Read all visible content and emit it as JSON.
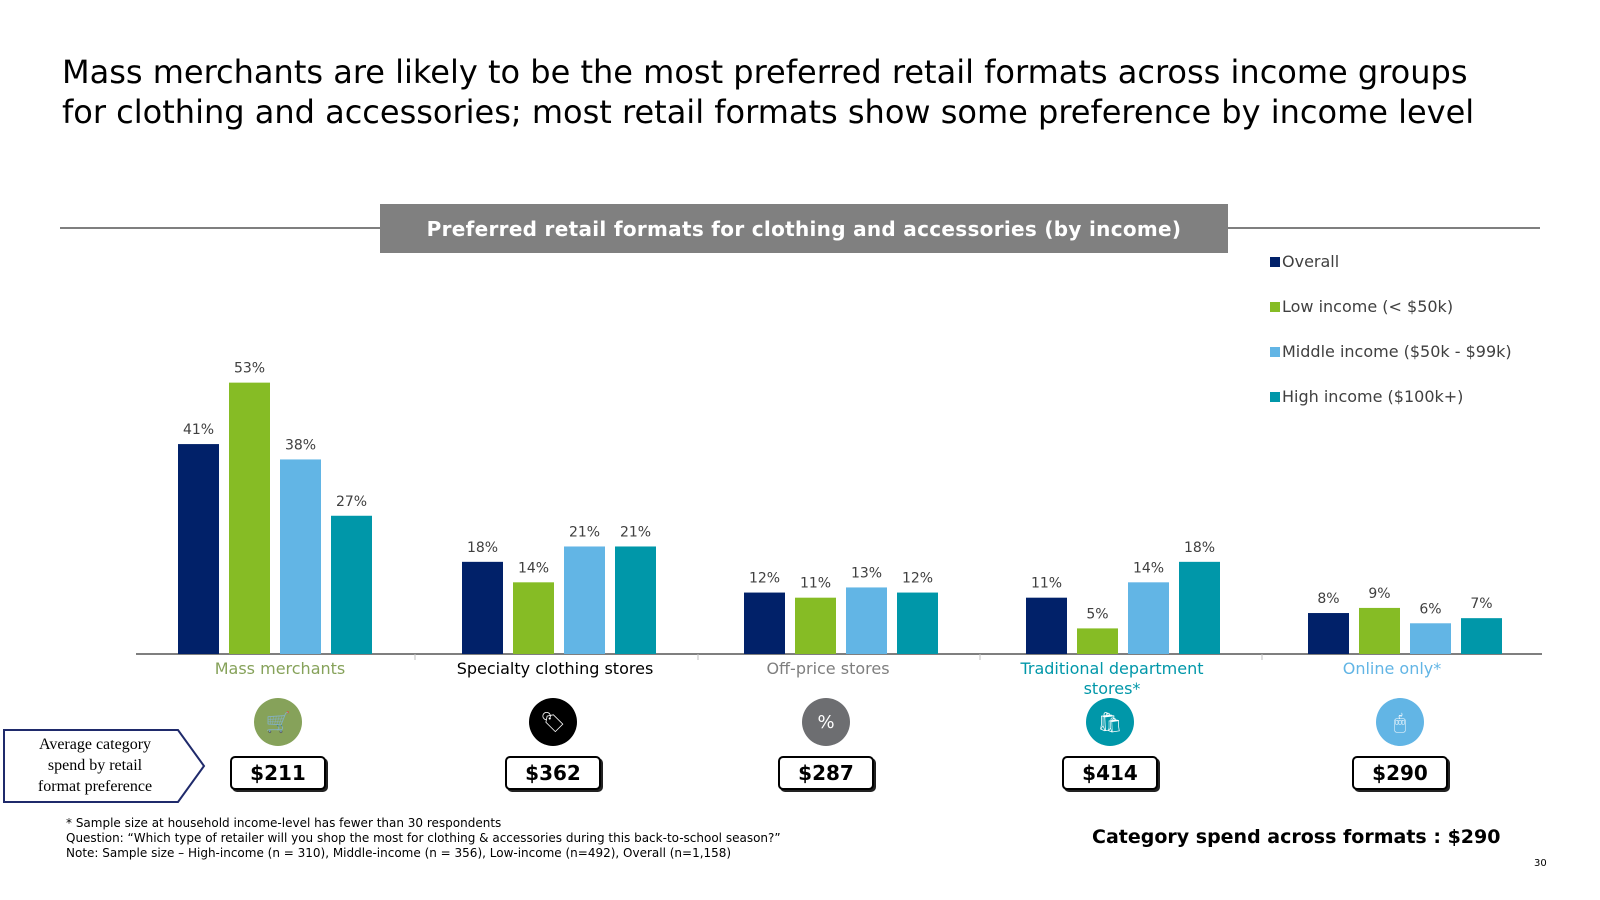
{
  "title": {
    "line1": "Mass merchants are likely to be the most preferred retail formats across income groups",
    "line2": "for clothing and accessories; most retail formats show some preference by income level"
  },
  "chart_data": {
    "type": "bar",
    "title": "Preferred retail formats for clothing and accessories (by income)",
    "categories": [
      "Mass merchants",
      "Specialty clothing stores",
      "Off-price stores",
      "Traditional department stores*",
      "Online only*"
    ],
    "category_colors": [
      "#86a25a",
      "#000000",
      "#7f7f7f",
      "#0097a9",
      "#62b5e5"
    ],
    "series": [
      {
        "name": "Overall",
        "color": "#012169",
        "values": [
          41,
          18,
          12,
          11,
          8
        ]
      },
      {
        "name": "Low income (< $50k)",
        "color": "#86bc25",
        "values": [
          53,
          14,
          11,
          5,
          9
        ]
      },
      {
        "name": "Middle income ($50k - $99k)",
        "color": "#62b5e5",
        "values": [
          38,
          21,
          13,
          14,
          6
        ]
      },
      {
        "name": "High income ($100k+)",
        "color": "#0097a9",
        "values": [
          27,
          21,
          12,
          18,
          7
        ]
      }
    ],
    "value_suffix": "%",
    "ylim": [
      0,
      60
    ],
    "grid": false,
    "legend": "top-right"
  },
  "icons": [
    {
      "name": "cart-icon",
      "color": "#86a25a",
      "glyph": "🛒"
    },
    {
      "name": "tag-icon",
      "color": "#000000",
      "glyph": "🏷"
    },
    {
      "name": "percent-icon",
      "color": "#6d6e71",
      "glyph": "%"
    },
    {
      "name": "shopping-bag-icon",
      "color": "#0097a9",
      "glyph": "🛍"
    },
    {
      "name": "mouse-icon",
      "color": "#62b5e5",
      "glyph": "🖱"
    }
  ],
  "spend": [
    "$211",
    "$362",
    "$287",
    "$414",
    "$290"
  ],
  "callout": {
    "line1": "Average category",
    "line2": "spend by retail",
    "line3": "format preference"
  },
  "footnotes": {
    "line1": "* Sample size at household income-level has fewer than 30 respondents",
    "line2": "Question: “Which type of retailer will you shop the most for clothing & accessories during this back-to-school season?”",
    "line3": "Note: Sample size – High-income (n = 310), Middle-income (n = 356), Low-income (n=492), Overall (n=1,158)"
  },
  "total_spend": "Category spend across formats : $290",
  "page_number": "30"
}
